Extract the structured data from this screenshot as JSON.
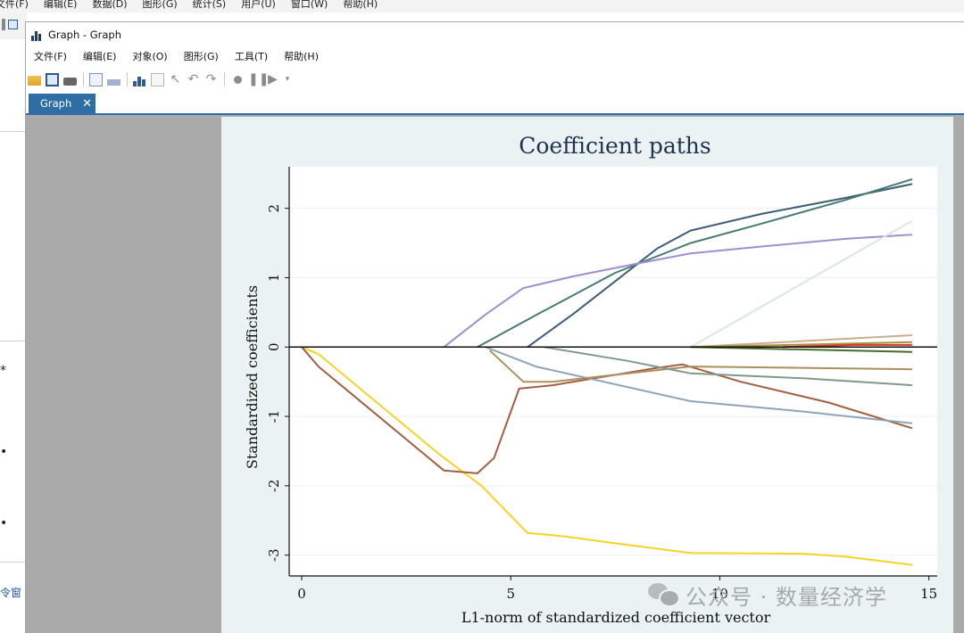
{
  "background_app": {
    "menu": [
      "文件(F)",
      "编辑(E)",
      "数据(D)",
      "图形(G)",
      "统计(S)",
      "用户(U)",
      "窗口(W)",
      "帮助(H)"
    ],
    "left_glyphs": [
      "*",
      "•",
      "•"
    ],
    "command_label": "令窗"
  },
  "window": {
    "title": "Graph - Graph",
    "menu": [
      "文件(F)",
      "编辑(E)",
      "对象(O)",
      "图形(G)",
      "工具(T)",
      "帮助(H)"
    ],
    "toolbar_icons": [
      "open-icon",
      "save-icon",
      "print-icon",
      "copy-icon",
      "rename-icon",
      "graph-editor-icon",
      "doc-icon",
      "pointer-icon",
      "undo-icon",
      "redo-icon",
      "record-icon",
      "pause-icon",
      "play-icon",
      "dropdown-icon"
    ],
    "tab": {
      "label": "Graph",
      "close": "✕"
    }
  },
  "watermark": {
    "text": "公众号 · 数量经济学"
  },
  "chart_data": {
    "type": "line",
    "title": "Coefficient paths",
    "xlabel": "L1-norm of standardized coefficient vector",
    "ylabel": "Standardized coefficients",
    "xlim": [
      -0.3,
      15.2
    ],
    "ylim": [
      -3.3,
      2.6
    ],
    "xticks": [
      0,
      5,
      10,
      15
    ],
    "yticks": [
      -3,
      -2,
      -1,
      0,
      1,
      2
    ],
    "xtick_labels": [
      "0",
      "5",
      "10",
      "15"
    ],
    "ytick_labels": [
      "-3",
      "-2",
      "-1",
      "0",
      "1",
      "2"
    ],
    "grid": "horizontal",
    "legend": "none",
    "zero_line": true,
    "series": [
      {
        "color": "#f5d327",
        "points": [
          [
            0,
            0
          ],
          [
            0.4,
            -0.1
          ],
          [
            3.3,
            -1.55
          ],
          [
            4.3,
            -2.0
          ],
          [
            5.4,
            -2.68
          ],
          [
            6.3,
            -2.73
          ],
          [
            7.5,
            -2.83
          ],
          [
            9.3,
            -2.97
          ],
          [
            12,
            -2.98
          ],
          [
            13,
            -3.02
          ],
          [
            14.6,
            -3.14
          ]
        ]
      },
      {
        "color": "#a55e3f",
        "points": [
          [
            0,
            0
          ],
          [
            0.4,
            -0.28
          ],
          [
            3.4,
            -1.78
          ],
          [
            4.2,
            -1.82
          ],
          [
            4.6,
            -1.6
          ],
          [
            5.2,
            -0.6
          ],
          [
            6,
            -0.55
          ],
          [
            7,
            -0.45
          ],
          [
            8.4,
            -0.31
          ],
          [
            9.1,
            -0.25
          ],
          [
            10.5,
            -0.5
          ],
          [
            12.6,
            -0.8
          ],
          [
            14.6,
            -1.17
          ]
        ]
      },
      {
        "color": "#3f5d78",
        "points": [
          [
            5.4,
            0
          ],
          [
            6.5,
            0.48
          ],
          [
            7.5,
            0.95
          ],
          [
            8.5,
            1.42
          ],
          [
            9.3,
            1.68
          ],
          [
            11,
            1.92
          ],
          [
            13,
            2.15
          ],
          [
            14.6,
            2.35
          ]
        ]
      },
      {
        "color": "#467c73",
        "points": [
          [
            4.2,
            0
          ],
          [
            5.6,
            0.46
          ],
          [
            7.5,
            1.07
          ],
          [
            9.3,
            1.5
          ],
          [
            11,
            1.78
          ],
          [
            13,
            2.12
          ],
          [
            14.6,
            2.42
          ]
        ]
      },
      {
        "color": "#a08ed0",
        "points": [
          [
            3.4,
            0
          ],
          [
            4.4,
            0.47
          ],
          [
            5.3,
            0.85
          ],
          [
            6.5,
            1.02
          ],
          [
            8,
            1.2
          ],
          [
            9.3,
            1.35
          ],
          [
            11,
            1.45
          ],
          [
            13,
            1.56
          ],
          [
            14.6,
            1.62
          ]
        ]
      },
      {
        "color": "#d7e6e6",
        "points": [
          [
            9.3,
            0
          ],
          [
            14.6,
            1.82
          ]
        ]
      },
      {
        "color": "#8fa3b7",
        "points": [
          [
            4.4,
            0
          ],
          [
            5.6,
            -0.28
          ],
          [
            9.3,
            -0.78
          ],
          [
            12,
            -0.93
          ],
          [
            14.6,
            -1.1
          ]
        ]
      },
      {
        "color": "#aa9060",
        "points": [
          [
            4.5,
            -0.05
          ],
          [
            5.3,
            -0.5
          ],
          [
            6,
            -0.5
          ],
          [
            9.3,
            -0.28
          ],
          [
            14.6,
            -0.32
          ]
        ]
      },
      {
        "color": "#7f9a8a",
        "points": [
          [
            5.8,
            0
          ],
          [
            7.8,
            -0.2
          ],
          [
            9.3,
            -0.38
          ],
          [
            12,
            -0.45
          ],
          [
            14.6,
            -0.55
          ]
        ]
      },
      {
        "color": "#c9ae8d",
        "points": [
          [
            9.3,
            0
          ],
          [
            14.6,
            0.17
          ]
        ]
      },
      {
        "color": "#ad8f3f",
        "points": [
          [
            9.3,
            0
          ],
          [
            14.6,
            0.07
          ]
        ]
      },
      {
        "color": "#d23b2d",
        "points": [
          [
            11.5,
            0
          ],
          [
            13.2,
            0.03
          ],
          [
            14.6,
            0.03
          ]
        ]
      },
      {
        "color": "#476c2f",
        "points": [
          [
            9.3,
            0
          ],
          [
            14.6,
            -0.07
          ]
        ]
      }
    ]
  }
}
